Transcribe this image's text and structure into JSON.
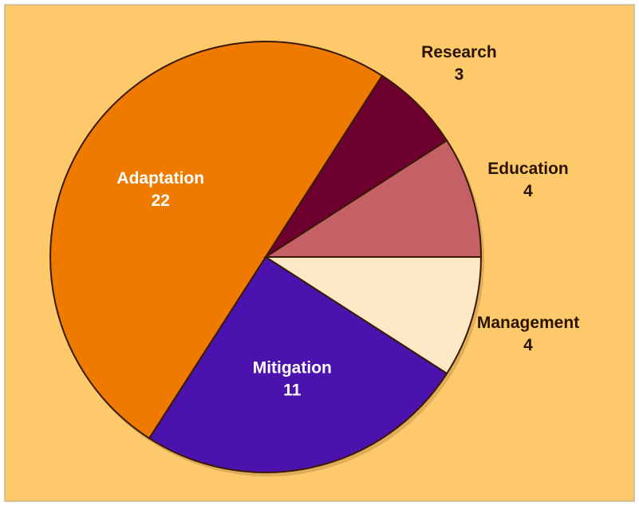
{
  "chart_data": {
    "type": "pie",
    "categories": [
      "Management",
      "Mitigation",
      "Adaptation",
      "Research",
      "Education"
    ],
    "values": [
      4,
      11,
      22,
      3,
      4
    ],
    "colors": [
      "#fde9c6",
      "#4b12ad",
      "#ee7a00",
      "#6e0030",
      "#c46066"
    ]
  }
}
